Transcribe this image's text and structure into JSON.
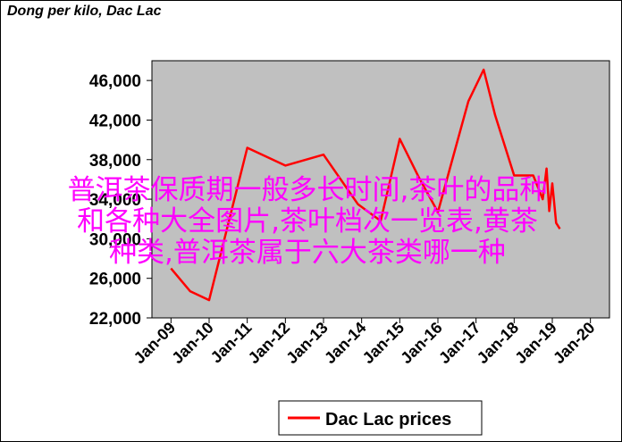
{
  "chart_data": {
    "type": "line",
    "title": "Dong per kilo, Dac Lac",
    "xlabel": "",
    "ylabel": "",
    "ylim": [
      22000,
      48000
    ],
    "y_ticks": [
      "22,000",
      "26,000",
      "30,000",
      "34,000",
      "38,000",
      "42,000",
      "46,000"
    ],
    "y_tick_values": [
      22000,
      26000,
      30000,
      34000,
      38000,
      42000,
      46000
    ],
    "x_ticks": [
      "Jan-09",
      "Jan-10",
      "Jan-11",
      "Jan-12",
      "Jan-13",
      "Jan-14",
      "Jan-15",
      "Jan-16",
      "Jan-17",
      "Jan-18",
      "Jan-19",
      "Jan-20"
    ],
    "x_tick_values": [
      2009,
      2010,
      2011,
      2012,
      2013,
      2014,
      2015,
      2016,
      2017,
      2018,
      2019,
      2020
    ],
    "xlim": [
      2009,
      2020
    ],
    "grid": false,
    "legend_position": "bottom",
    "series": [
      {
        "name": "Dac Lac prices",
        "color": "#ff0000",
        "x": [
          2009.0,
          2009.5,
          2010.0,
          2011.0,
          2012.0,
          2013.0,
          2013.9,
          2014.5,
          2015.0,
          2015.5,
          2016.0,
          2016.8,
          2017.2,
          2017.5,
          2018.0,
          2018.5,
          2018.75,
          2018.85,
          2018.92,
          2019.0,
          2019.1,
          2019.2
        ],
        "values": [
          27000,
          24700,
          23800,
          39200,
          37400,
          38500,
          33500,
          31800,
          40100,
          36200,
          32700,
          43900,
          47100,
          42500,
          36400,
          36400,
          34000,
          37100,
          32800,
          35600,
          31600,
          31000
        ]
      }
    ]
  },
  "overlay_lines": [
    "普洱茶保质期一般多长时间,茶叶的品种",
    "和各种大全图片,茶叶档次一览表,黄茶",
    "种类,普洱茶属于六大茶类哪一种"
  ],
  "colors": {
    "plot_background": "#c0c0c0",
    "line": "#ff0000",
    "overlay_text": "#ff00ff"
  }
}
